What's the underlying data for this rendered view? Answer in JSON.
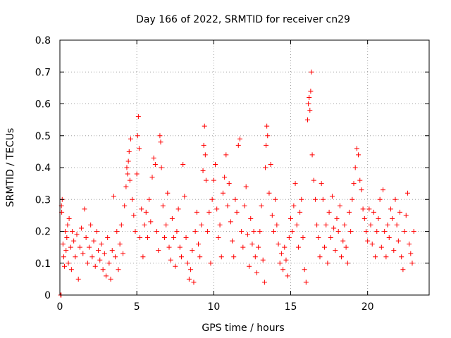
{
  "chart_data": {
    "type": "scatter",
    "title": "Day 166 of 2022, SRMTID for receiver cn29",
    "xlabel": "GPS time / hours",
    "ylabel": "SRMTID / TECUs",
    "xlim": [
      0,
      24
    ],
    "ylim": [
      0,
      0.8
    ],
    "xticks": [
      0,
      5,
      10,
      15,
      20
    ],
    "xtick_labels": [
      "0",
      "5",
      "10",
      "15",
      "20"
    ],
    "yticks": [
      0,
      0.1,
      0.2,
      0.3,
      0.4,
      0.5,
      0.6,
      0.7,
      0.8
    ],
    "ytick_labels": [
      "0",
      "0.1",
      "0.2",
      "0.3",
      "0.4",
      "0.5",
      "0.6",
      "0.7",
      "0.8"
    ],
    "grid": true,
    "marker": "+",
    "series": [
      {
        "name": "SRMTID",
        "color": "#ff0000",
        "points": [
          [
            0.05,
            0.0
          ],
          [
            0.08,
            0.0
          ],
          [
            0.1,
            0.28
          ],
          [
            0.12,
            0.26
          ],
          [
            0.15,
            0.3
          ],
          [
            0.2,
            0.16
          ],
          [
            0.25,
            0.12
          ],
          [
            0.3,
            0.09
          ],
          [
            0.35,
            0.2
          ],
          [
            0.4,
            0.14
          ],
          [
            0.45,
            0.18
          ],
          [
            0.5,
            0.22
          ],
          [
            0.55,
            0.1
          ],
          [
            0.6,
            0.24
          ],
          [
            0.7,
            0.15
          ],
          [
            0.75,
            0.08
          ],
          [
            0.8,
            0.2
          ],
          [
            0.9,
            0.17
          ],
          [
            1.0,
            0.12
          ],
          [
            1.1,
            0.19
          ],
          [
            1.2,
            0.05
          ],
          [
            1.3,
            0.15
          ],
          [
            1.4,
            0.21
          ],
          [
            1.5,
            0.13
          ],
          [
            1.6,
            0.27
          ],
          [
            1.7,
            0.18
          ],
          [
            1.8,
            0.1
          ],
          [
            1.9,
            0.15
          ],
          [
            2.0,
            0.22
          ],
          [
            2.1,
            0.12
          ],
          [
            2.2,
            0.17
          ],
          [
            2.3,
            0.09
          ],
          [
            2.4,
            0.2
          ],
          [
            2.5,
            0.14
          ],
          [
            2.6,
            0.11
          ],
          [
            2.7,
            0.16
          ],
          [
            2.8,
            0.08
          ],
          [
            2.9,
            0.13
          ],
          [
            3.0,
            0.06
          ],
          [
            3.1,
            0.18
          ],
          [
            3.2,
            0.1
          ],
          [
            3.3,
            0.05
          ],
          [
            3.4,
            0.14
          ],
          [
            3.5,
            0.31
          ],
          [
            3.6,
            0.12
          ],
          [
            3.7,
            0.2
          ],
          [
            3.8,
            0.08
          ],
          [
            3.9,
            0.16
          ],
          [
            4.0,
            0.22
          ],
          [
            4.1,
            0.13
          ],
          [
            4.2,
            0.28
          ],
          [
            4.3,
            0.34
          ],
          [
            4.35,
            0.4
          ],
          [
            4.4,
            0.38
          ],
          [
            4.45,
            0.42
          ],
          [
            4.5,
            0.45
          ],
          [
            4.55,
            0.36
          ],
          [
            4.6,
            0.49
          ],
          [
            4.7,
            0.3
          ],
          [
            4.8,
            0.25
          ],
          [
            4.9,
            0.2
          ],
          [
            5.0,
            0.38
          ],
          [
            5.05,
            0.5
          ],
          [
            5.1,
            0.56
          ],
          [
            5.15,
            0.46
          ],
          [
            5.2,
            0.18
          ],
          [
            5.3,
            0.27
          ],
          [
            5.4,
            0.12
          ],
          [
            5.5,
            0.22
          ],
          [
            5.6,
            0.26
          ],
          [
            5.7,
            0.18
          ],
          [
            5.8,
            0.3
          ],
          [
            5.9,
            0.23
          ],
          [
            6.0,
            0.37
          ],
          [
            6.1,
            0.43
          ],
          [
            6.2,
            0.41
          ],
          [
            6.3,
            0.2
          ],
          [
            6.4,
            0.14
          ],
          [
            6.5,
            0.5
          ],
          [
            6.55,
            0.48
          ],
          [
            6.6,
            0.4
          ],
          [
            6.7,
            0.28
          ],
          [
            6.8,
            0.18
          ],
          [
            6.9,
            0.22
          ],
          [
            7.0,
            0.32
          ],
          [
            7.1,
            0.15
          ],
          [
            7.2,
            0.11
          ],
          [
            7.3,
            0.24
          ],
          [
            7.4,
            0.18
          ],
          [
            7.5,
            0.09
          ],
          [
            7.6,
            0.2
          ],
          [
            7.7,
            0.27
          ],
          [
            7.8,
            0.15
          ],
          [
            7.9,
            0.12
          ],
          [
            8.0,
            0.41
          ],
          [
            8.1,
            0.31
          ],
          [
            8.2,
            0.18
          ],
          [
            8.3,
            0.1
          ],
          [
            8.4,
            0.05
          ],
          [
            8.5,
            0.08
          ],
          [
            8.6,
            0.14
          ],
          [
            8.7,
            0.04
          ],
          [
            8.8,
            0.2
          ],
          [
            8.9,
            0.26
          ],
          [
            9.0,
            0.16
          ],
          [
            9.1,
            0.12
          ],
          [
            9.2,
            0.22
          ],
          [
            9.3,
            0.39
          ],
          [
            9.35,
            0.47
          ],
          [
            9.4,
            0.53
          ],
          [
            9.45,
            0.44
          ],
          [
            9.5,
            0.36
          ],
          [
            9.6,
            0.2
          ],
          [
            9.7,
            0.26
          ],
          [
            9.8,
            0.1
          ],
          [
            9.9,
            0.3
          ],
          [
            10.0,
            0.36
          ],
          [
            10.1,
            0.41
          ],
          [
            10.2,
            0.27
          ],
          [
            10.3,
            0.18
          ],
          [
            10.4,
            0.22
          ],
          [
            10.5,
            0.12
          ],
          [
            10.6,
            0.32
          ],
          [
            10.7,
            0.37
          ],
          [
            10.8,
            0.44
          ],
          [
            10.9,
            0.28
          ],
          [
            11.0,
            0.35
          ],
          [
            11.1,
            0.23
          ],
          [
            11.2,
            0.17
          ],
          [
            11.3,
            0.12
          ],
          [
            11.4,
            0.3
          ],
          [
            11.5,
            0.26
          ],
          [
            11.6,
            0.47
          ],
          [
            11.7,
            0.49
          ],
          [
            11.8,
            0.2
          ],
          [
            11.9,
            0.15
          ],
          [
            12.0,
            0.28
          ],
          [
            12.1,
            0.34
          ],
          [
            12.2,
            0.19
          ],
          [
            12.3,
            0.09
          ],
          [
            12.4,
            0.24
          ],
          [
            12.5,
            0.16
          ],
          [
            12.6,
            0.2
          ],
          [
            12.7,
            0.12
          ],
          [
            12.8,
            0.07
          ],
          [
            12.9,
            0.15
          ],
          [
            13.0,
            0.2
          ],
          [
            13.1,
            0.28
          ],
          [
            13.2,
            0.11
          ],
          [
            13.3,
            0.04
          ],
          [
            13.35,
            0.4
          ],
          [
            13.4,
            0.47
          ],
          [
            13.45,
            0.53
          ],
          [
            13.5,
            0.5
          ],
          [
            13.6,
            0.32
          ],
          [
            13.7,
            0.41
          ],
          [
            13.8,
            0.25
          ],
          [
            13.9,
            0.2
          ],
          [
            14.0,
            0.3
          ],
          [
            14.1,
            0.22
          ],
          [
            14.2,
            0.16
          ],
          [
            14.3,
            0.1
          ],
          [
            14.4,
            0.13
          ],
          [
            14.5,
            0.08
          ],
          [
            14.6,
            0.15
          ],
          [
            14.7,
            0.11
          ],
          [
            14.8,
            0.06
          ],
          [
            14.9,
            0.18
          ],
          [
            15.0,
            0.24
          ],
          [
            15.1,
            0.2
          ],
          [
            15.2,
            0.28
          ],
          [
            15.3,
            0.35
          ],
          [
            15.4,
            0.22
          ],
          [
            15.5,
            0.15
          ],
          [
            15.6,
            0.26
          ],
          [
            15.7,
            0.3
          ],
          [
            15.8,
            0.18
          ],
          [
            15.9,
            0.08
          ],
          [
            16.0,
            0.04
          ],
          [
            16.1,
            0.55
          ],
          [
            16.15,
            0.6
          ],
          [
            16.2,
            0.62
          ],
          [
            16.25,
            0.58
          ],
          [
            16.3,
            0.64
          ],
          [
            16.35,
            0.7
          ],
          [
            16.4,
            0.44
          ],
          [
            16.5,
            0.36
          ],
          [
            16.6,
            0.3
          ],
          [
            16.7,
            0.22
          ],
          [
            16.8,
            0.18
          ],
          [
            16.9,
            0.12
          ],
          [
            17.0,
            0.35
          ],
          [
            17.1,
            0.3
          ],
          [
            17.2,
            0.15
          ],
          [
            17.3,
            0.22
          ],
          [
            17.4,
            0.1
          ],
          [
            17.5,
            0.26
          ],
          [
            17.6,
            0.18
          ],
          [
            17.7,
            0.31
          ],
          [
            17.8,
            0.21
          ],
          [
            17.9,
            0.14
          ],
          [
            18.0,
            0.24
          ],
          [
            18.1,
            0.2
          ],
          [
            18.2,
            0.28
          ],
          [
            18.3,
            0.12
          ],
          [
            18.4,
            0.17
          ],
          [
            18.5,
            0.22
          ],
          [
            18.6,
            0.15
          ],
          [
            18.7,
            0.1
          ],
          [
            18.8,
            0.26
          ],
          [
            18.9,
            0.2
          ],
          [
            19.0,
            0.3
          ],
          [
            19.1,
            0.35
          ],
          [
            19.2,
            0.4
          ],
          [
            19.3,
            0.46
          ],
          [
            19.4,
            0.44
          ],
          [
            19.5,
            0.36
          ],
          [
            19.6,
            0.33
          ],
          [
            19.7,
            0.27
          ],
          [
            19.8,
            0.24
          ],
          [
            19.9,
            0.2
          ],
          [
            20.0,
            0.17
          ],
          [
            20.1,
            0.27
          ],
          [
            20.2,
            0.22
          ],
          [
            20.3,
            0.16
          ],
          [
            20.4,
            0.26
          ],
          [
            20.5,
            0.12
          ],
          [
            20.6,
            0.2
          ],
          [
            20.7,
            0.24
          ],
          [
            20.8,
            0.3
          ],
          [
            20.9,
            0.15
          ],
          [
            21.0,
            0.33
          ],
          [
            21.1,
            0.2
          ],
          [
            21.2,
            0.12
          ],
          [
            21.3,
            0.22
          ],
          [
            21.4,
            0.18
          ],
          [
            21.5,
            0.27
          ],
          [
            21.6,
            0.24
          ],
          [
            21.7,
            0.14
          ],
          [
            21.8,
            0.3
          ],
          [
            21.9,
            0.22
          ],
          [
            22.0,
            0.17
          ],
          [
            22.1,
            0.26
          ],
          [
            22.2,
            0.12
          ],
          [
            22.3,
            0.08
          ],
          [
            22.4,
            0.2
          ],
          [
            22.5,
            0.25
          ],
          [
            22.6,
            0.32
          ],
          [
            22.7,
            0.16
          ],
          [
            22.8,
            0.13
          ],
          [
            22.9,
            0.1
          ],
          [
            23.0,
            0.2
          ]
        ]
      }
    ]
  }
}
